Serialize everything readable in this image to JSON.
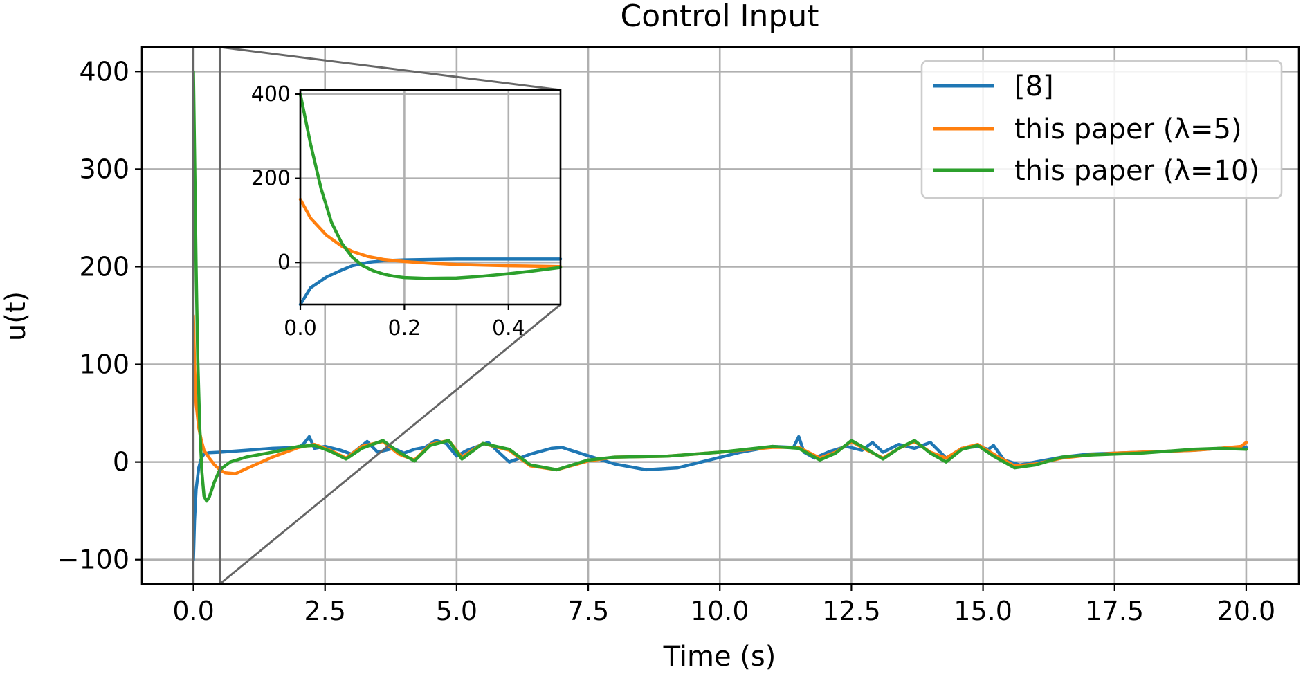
{
  "chart_data": {
    "type": "line",
    "title": "Control Input",
    "xlabel": "Time (s)",
    "ylabel": "u(t)",
    "xlim": [
      -0.98,
      21.0
    ],
    "ylim": [
      -125,
      425
    ],
    "xticks": [
      0.0,
      2.5,
      5.0,
      7.5,
      10.0,
      12.5,
      15.0,
      17.5,
      20.0
    ],
    "xtick_labels": [
      "0.0",
      "2.5",
      "5.0",
      "7.5",
      "10.0",
      "12.5",
      "15.0",
      "17.5",
      "20.0"
    ],
    "yticks": [
      -100,
      0,
      100,
      200,
      300,
      400
    ],
    "ytick_labels": [
      "−100",
      "0",
      "100",
      "200",
      "300",
      "400"
    ],
    "grid": true,
    "legend_position": "top-right",
    "zoom_region": {
      "x": [
        0.0,
        0.5
      ],
      "y": [
        -125,
        425
      ]
    },
    "series": [
      {
        "name": "[8]",
        "color": "#1f77b4",
        "x": [
          0,
          0.02,
          0.05,
          0.1,
          0.15,
          0.2,
          0.3,
          0.5,
          1.0,
          1.5,
          2.0,
          2.1,
          2.2,
          2.3,
          2.5,
          2.8,
          3.0,
          3.3,
          3.5,
          3.8,
          4.0,
          4.2,
          4.4,
          4.6,
          4.8,
          5.0,
          5.2,
          5.6,
          6.0,
          6.4,
          6.8,
          7.0,
          7.4,
          8.0,
          8.6,
          9.2,
          9.8,
          10.4,
          11.0,
          11.4,
          11.5,
          11.6,
          11.8,
          12.1,
          12.4,
          12.7,
          12.9,
          13.1,
          13.4,
          13.7,
          14.0,
          14.3,
          14.6,
          14.9,
          15.1,
          15.2,
          15.4,
          15.7,
          16.0,
          16.5,
          17.0,
          17.5,
          18.0,
          18.5,
          19.0,
          19.5,
          20.0
        ],
        "values": [
          -100,
          -60,
          -28,
          -6,
          4,
          8,
          9.5,
          10,
          12,
          14,
          15,
          19,
          26,
          14,
          16,
          12,
          8,
          21,
          10,
          14,
          9,
          13,
          15,
          22,
          19,
          6,
          12,
          20,
          0,
          8,
          14,
          15,
          8,
          -2,
          -8,
          -6,
          2,
          10,
          16,
          15,
          26,
          10,
          4,
          11,
          16,
          12,
          20,
          10,
          18,
          14,
          20,
          4,
          14,
          16,
          13,
          17,
          2,
          -3,
          0,
          5,
          8,
          9,
          10,
          11,
          12,
          14,
          15
        ]
      },
      {
        "name": "this paper (λ=5)",
        "color": "#ff7f0e",
        "x": [
          0,
          0.02,
          0.05,
          0.1,
          0.15,
          0.2,
          0.3,
          0.4,
          0.5,
          0.6,
          0.8,
          1.0,
          1.5,
          2.0,
          2.3,
          2.6,
          2.9,
          3.2,
          3.6,
          3.9,
          4.2,
          4.5,
          4.85,
          5.1,
          5.5,
          6.0,
          6.4,
          6.9,
          7.5,
          8.0,
          9.0,
          10.0,
          11.0,
          11.5,
          11.9,
          12.2,
          12.5,
          12.8,
          13.1,
          13.4,
          13.7,
          14.0,
          14.3,
          14.6,
          14.9,
          15.2,
          15.6,
          16.0,
          16.5,
          17.0,
          17.5,
          18.0,
          18.5,
          19.0,
          19.5,
          19.9,
          20.0
        ],
        "values": [
          150,
          100,
          60,
          35,
          22,
          12,
          4,
          -3,
          -8,
          -11,
          -12,
          -7,
          5,
          15,
          18,
          12,
          4,
          16,
          21,
          8,
          2,
          18,
          22,
          5,
          19,
          12,
          -4,
          -8,
          1,
          5,
          6,
          10,
          15,
          15,
          4,
          10,
          21,
          12,
          4,
          14,
          21,
          10,
          4,
          14,
          18,
          8,
          -4,
          -2,
          4,
          7,
          9,
          10,
          11,
          12,
          14,
          16,
          20
        ]
      },
      {
        "name": "this paper (λ=10)",
        "color": "#2ca02c",
        "x": [
          0,
          0.02,
          0.05,
          0.08,
          0.12,
          0.16,
          0.2,
          0.25,
          0.3,
          0.35,
          0.4,
          0.5,
          0.7,
          1.0,
          1.5,
          2.0,
          2.3,
          2.6,
          2.9,
          3.2,
          3.6,
          3.9,
          4.2,
          4.5,
          4.85,
          5.1,
          5.5,
          6.0,
          6.4,
          6.9,
          7.5,
          8.0,
          9.0,
          10.0,
          11.0,
          11.5,
          11.9,
          12.2,
          12.5,
          12.8,
          13.1,
          13.4,
          13.7,
          14.0,
          14.3,
          14.6,
          14.9,
          15.2,
          15.6,
          16.0,
          16.5,
          17.0,
          17.5,
          18.0,
          18.5,
          19.0,
          19.5,
          20.0
        ],
        "values": [
          400,
          320,
          200,
          110,
          35,
          -10,
          -35,
          -40,
          -36,
          -28,
          -20,
          -8,
          0,
          5,
          10,
          16,
          17,
          11,
          3,
          14,
          22,
          10,
          1,
          17,
          22,
          3,
          19,
          13,
          -3,
          -8,
          2,
          5,
          6,
          10,
          16,
          14,
          2,
          9,
          22,
          13,
          3,
          14,
          22,
          9,
          0,
          13,
          17,
          6,
          -6,
          -3,
          5,
          7,
          8,
          9,
          11,
          13,
          14,
          13
        ]
      }
    ],
    "inset": {
      "xlim": [
        0.0,
        0.5
      ],
      "ylim": [
        -100,
        410
      ],
      "xticks": [
        0.0,
        0.2,
        0.4
      ],
      "xtick_labels": [
        "0.0",
        "0.2",
        "0.4"
      ],
      "yticks": [
        0,
        200,
        400
      ],
      "ytick_labels": [
        "0",
        "200",
        "400"
      ],
      "series": [
        {
          "name": "[8]",
          "color": "#1f77b4",
          "x": [
            0,
            0.02,
            0.05,
            0.08,
            0.1,
            0.13,
            0.16,
            0.2,
            0.25,
            0.3,
            0.4,
            0.5
          ],
          "values": [
            -100,
            -60,
            -35,
            -18,
            -8,
            0,
            4,
            6,
            7,
            8,
            8,
            8
          ]
        },
        {
          "name": "this paper (λ=5)",
          "color": "#ff7f0e",
          "x": [
            0,
            0.02,
            0.05,
            0.08,
            0.1,
            0.13,
            0.16,
            0.2,
            0.25,
            0.3,
            0.4,
            0.5
          ],
          "values": [
            150,
            105,
            65,
            38,
            26,
            14,
            7,
            2,
            -2,
            -5,
            -8,
            -10
          ]
        },
        {
          "name": "this paper (λ=10)",
          "color": "#2ca02c",
          "x": [
            0,
            0.02,
            0.04,
            0.06,
            0.08,
            0.1,
            0.12,
            0.14,
            0.16,
            0.18,
            0.2,
            0.24,
            0.3,
            0.35,
            0.4,
            0.45,
            0.5
          ],
          "values": [
            400,
            280,
            175,
            95,
            45,
            12,
            -8,
            -20,
            -28,
            -33,
            -36,
            -38,
            -37,
            -33,
            -27,
            -20,
            -12
          ]
        }
      ]
    }
  }
}
